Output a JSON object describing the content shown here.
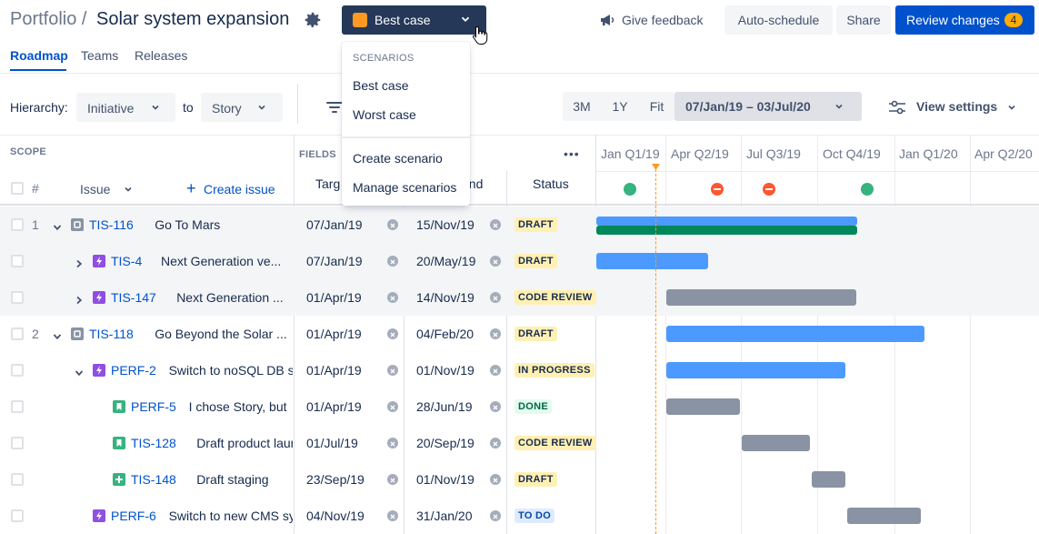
{
  "header": {
    "breadcrumb": "Portfolio /",
    "title": "Solar system expansion",
    "scenario": "Best case",
    "feedback": "Give feedback",
    "auto_schedule": "Auto-schedule",
    "share": "Share",
    "review": "Review changes",
    "review_count": "4"
  },
  "tabs": [
    "Roadmap",
    "Teams",
    "Releases"
  ],
  "toolbar": {
    "hierarchy_label": "Hierarchy:",
    "from": "Initiative",
    "to_label": "to",
    "to": "Story",
    "zoom": [
      "3M",
      "1Y",
      "Fit"
    ],
    "range": "07/Jan/19 – 03/Jul/20",
    "view_settings": "View settings"
  },
  "scenario_menu": {
    "section": "SCENARIOS",
    "items": [
      "Best case",
      "Worst case"
    ],
    "actions": [
      "Create scenario",
      "Manage scenarios"
    ]
  },
  "grid": {
    "scope": "SCOPE",
    "fields": "FIELDS",
    "hash": "#",
    "issue": "Issue",
    "create_issue": "Create issue",
    "target_start": "Targ",
    "target_end": "end",
    "status": "Status",
    "more": "•••"
  },
  "timeline": {
    "quarters": [
      "Jan Q1/19",
      "Apr Q2/19",
      "Jul Q3/19",
      "Oct Q4/19",
      "Jan Q1/20",
      "Apr Q2/20"
    ]
  },
  "rows": [
    {
      "num": "1",
      "key": "TIS-116",
      "summary": "Go To Mars",
      "start": "07/Jan/19",
      "end": "15/Nov/19",
      "status": "DRAFT"
    },
    {
      "num": "",
      "key": "TIS-4",
      "summary": "Next Generation ve...",
      "start": "07/Jan/19",
      "end": "20/May/19",
      "status": "DRAFT"
    },
    {
      "num": "",
      "key": "TIS-147",
      "summary": "Next Generation ...",
      "start": "01/Apr/19",
      "end": "14/Nov/19",
      "status": "CODE REVIEW"
    },
    {
      "num": "2",
      "key": "TIS-118",
      "summary": "Go Beyond the Solar ...",
      "start": "01/Apr/19",
      "end": "04/Feb/20",
      "status": "DRAFT"
    },
    {
      "num": "",
      "key": "PERF-2",
      "summary": "Switch to noSQL DB s",
      "start": "01/Apr/19",
      "end": "01/Nov/19",
      "status": "IN PROGRESS"
    },
    {
      "num": "",
      "key": "PERF-5",
      "summary": "I chose Story, but",
      "start": "01/Apr/19",
      "end": "28/Jun/19",
      "status": "DONE"
    },
    {
      "num": "",
      "key": "TIS-128",
      "summary": "Draft product laur",
      "start": "01/Jul/19",
      "end": "20/Sep/19",
      "status": "CODE REVIEW"
    },
    {
      "num": "",
      "key": "TIS-148",
      "summary": "Draft staging",
      "start": "23/Sep/19",
      "end": "01/Nov/19",
      "status": "DRAFT"
    },
    {
      "num": "",
      "key": "PERF-6",
      "summary": "Switch to new CMS sy",
      "start": "04/Nov/19",
      "end": "31/Jan/20",
      "status": "TO DO"
    }
  ],
  "colors": {
    "primary": "#0052cc",
    "scenario_button": "#253858",
    "scenario_swatch": "#ff991f",
    "bar_blue": "#4c9aff",
    "bar_gray": "#8993a4",
    "bar_green": "#00875a",
    "today_line": "#ff991f"
  }
}
